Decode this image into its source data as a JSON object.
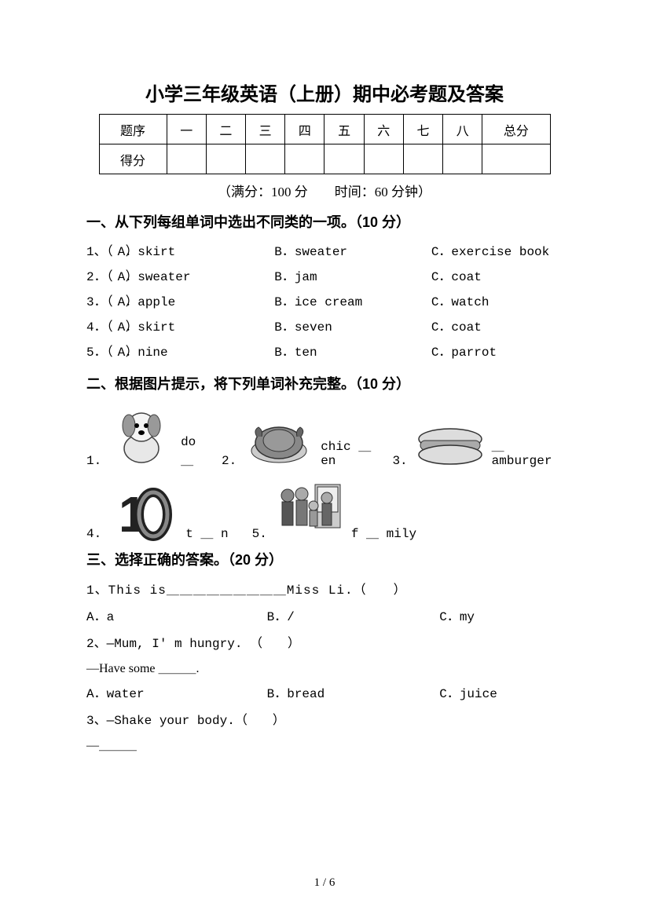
{
  "title": "小学三年级英语（上册）期中必考题及答案",
  "score_table": {
    "row_label_1": "题序",
    "row_label_2": "得分",
    "cols": [
      "一",
      "二",
      "三",
      "四",
      "五",
      "六",
      "七",
      "八"
    ],
    "total_label": "总分"
  },
  "subline": "（满分：100 分　　时间：60 分钟）",
  "section1": {
    "heading": "一、从下列每组单词中选出不同类的一项。（10 分）",
    "items": [
      {
        "num": "1、（　）A．skirt",
        "b": "B．sweater",
        "c": "C．exercise book"
      },
      {
        "num": "2．（　）A．sweater",
        "b": "B．jam",
        "c": "C．coat"
      },
      {
        "num": "3．（　）A．apple",
        "b": "B．ice cream",
        "c": "C．watch"
      },
      {
        "num": "4．（　）A．skirt",
        "b": "B．seven",
        "c": "C．coat"
      },
      {
        "num": "5．（　）A．nine",
        "b": "B．ten",
        "c": "C．parrot"
      }
    ]
  },
  "section2": {
    "heading": "二、根据图片提示，将下列单词补充完整。（10 分）",
    "row1": [
      {
        "num": "1.",
        "word": "do ＿",
        "image": "dog"
      },
      {
        "num": "2.",
        "word": "chic ＿ en",
        "image": "chicken"
      },
      {
        "num": "3.",
        "word": "＿ amburger",
        "image": "hamburger"
      }
    ],
    "row2": [
      {
        "num": "4.",
        "word": "t ＿ n",
        "image": "ten"
      },
      {
        "num": "5.",
        "word": "f ＿ mily",
        "image": "family"
      }
    ]
  },
  "section3": {
    "heading": "三、选择正确的答案。（20 分）",
    "q1": {
      "stem": "1、This is＿＿＿＿＿＿＿＿＿Miss Li.（　　）",
      "a": "A．a",
      "b": "B．/",
      "c": "C．my"
    },
    "q2": {
      "stem": "2、—Mum, I' m hungry. （　　）",
      "reply": "—Have some ＿＿＿.",
      "a": "A．water",
      "b": "B．bread",
      "c": "C．juice"
    },
    "q3": {
      "stem": "3、—Shake your body.（　　）",
      "reply": "—＿＿＿"
    }
  },
  "footer": "1 / 6",
  "colors": {
    "text": "#000000",
    "bg": "#ffffff",
    "border": "#000000"
  },
  "fonts": {
    "heading": "SimHei",
    "body": "SimSun",
    "latin": "Courier New",
    "title_size_pt": 24,
    "heading_size_pt": 18,
    "body_size_pt": 16
  }
}
